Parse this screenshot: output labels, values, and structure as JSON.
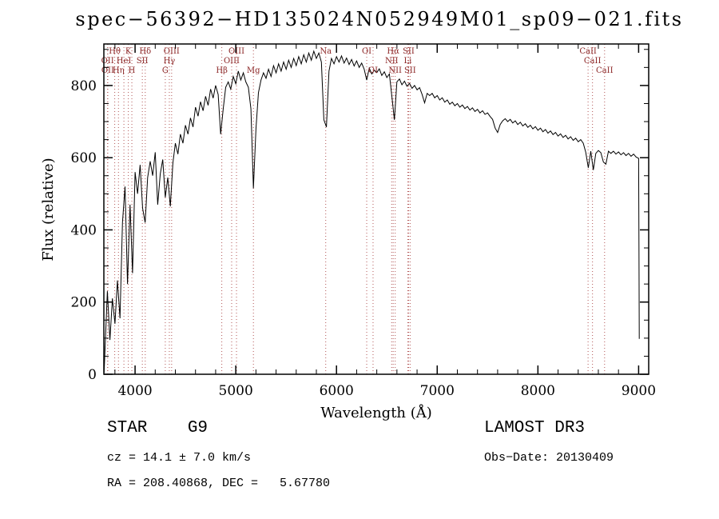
{
  "title": "spec−56392−HD135024N052949M01_sp09−021.fits",
  "axes": {
    "xlabel": "Wavelength (Å)",
    "ylabel": "Flux (relative)"
  },
  "footer": {
    "classification": "STAR    G9",
    "cz": "cz = 14.1 ± 7.0 km/s",
    "coords": "RA = 208.40868, DEC =   5.67780",
    "survey": "LAMOST DR3",
    "obs_date": "Obs−Date: 20130409"
  },
  "chart_data": {
    "type": "line",
    "title": "spec−56392−HD135024N052949M01_sp09−021.fits",
    "xlabel": "Wavelength (Å)",
    "ylabel": "Flux (relative)",
    "xlim": [
      3690,
      9100
    ],
    "ylim": [
      0,
      915
    ],
    "xticks": [
      4000,
      5000,
      6000,
      7000,
      8000,
      9000
    ],
    "yticks": [
      0,
      200,
      400,
      600,
      800
    ],
    "x_minor_step": 200,
    "y_minor_step": 50,
    "grid": false,
    "legend": "none",
    "line_color": "#000000",
    "spectral_line_color": "#b25555",
    "spectral_label_color": "#8b2525",
    "spectral_lines": [
      {
        "wavelength": 3798,
        "label": "Hθ",
        "row": 1
      },
      {
        "wavelength": 3933,
        "label": "K",
        "row": 1
      },
      {
        "wavelength": 4101,
        "label": "Hδ",
        "row": 1
      },
      {
        "wavelength": 4363,
        "label": "OIII",
        "row": 1
      },
      {
        "wavelength": 5007,
        "label": "OIII",
        "row": 1
      },
      {
        "wavelength": 5893,
        "label": "Na",
        "row": 1
      },
      {
        "wavelength": 6300,
        "label": "OI",
        "row": 1
      },
      {
        "wavelength": 6563,
        "label": "Hα",
        "row": 1
      },
      {
        "wavelength": 6716,
        "label": "SII",
        "row": 1
      },
      {
        "wavelength": 8498,
        "label": "CaII",
        "row": 1
      },
      {
        "wavelength": 3727,
        "label": "OII",
        "row": 2
      },
      {
        "wavelength": 3889,
        "label": "HeI",
        "row": 2
      },
      {
        "wavelength": 4072,
        "label": "SII",
        "row": 2
      },
      {
        "wavelength": 4340,
        "label": "Hγ",
        "row": 2
      },
      {
        "wavelength": 4959,
        "label": "OIII",
        "row": 2
      },
      {
        "wavelength": 6548,
        "label": "NII",
        "row": 2
      },
      {
        "wavelength": 6708,
        "label": "Li",
        "row": 2
      },
      {
        "wavelength": 8542,
        "label": "CaII",
        "row": 2
      },
      {
        "wavelength": 3729,
        "label": "OII",
        "row": 3
      },
      {
        "wavelength": 3835,
        "label": "Hη",
        "row": 3
      },
      {
        "wavelength": 3968,
        "label": "H",
        "row": 3
      },
      {
        "wavelength": 4300,
        "label": "G",
        "row": 3
      },
      {
        "wavelength": 4861,
        "label": "Hβ",
        "row": 3
      },
      {
        "wavelength": 5175,
        "label": "Mg",
        "row": 3
      },
      {
        "wavelength": 6363,
        "label": "OI",
        "row": 3
      },
      {
        "wavelength": 6583,
        "label": "NII",
        "row": 3
      },
      {
        "wavelength": 6731,
        "label": "SII",
        "row": 3
      },
      {
        "wavelength": 8662,
        "label": "CaII",
        "row": 3
      }
    ],
    "x_start": 3700,
    "x_step": 25,
    "pre_points": [
      [
        3692,
        4
      ]
    ],
    "post_points": [
      [
        9003,
        360
      ],
      [
        9006,
        98
      ]
    ],
    "y": [
      60,
      230,
      95,
      210,
      140,
      260,
      155,
      420,
      520,
      250,
      470,
      280,
      560,
      500,
      580,
      460,
      420,
      545,
      590,
      550,
      615,
      470,
      555,
      595,
      490,
      545,
      465,
      585,
      640,
      610,
      665,
      640,
      690,
      665,
      710,
      685,
      740,
      715,
      755,
      730,
      770,
      745,
      790,
      765,
      800,
      775,
      665,
      735,
      795,
      810,
      790,
      825,
      805,
      840,
      815,
      835,
      810,
      795,
      735,
      515,
      680,
      780,
      815,
      835,
      820,
      845,
      825,
      855,
      835,
      860,
      840,
      865,
      845,
      870,
      850,
      875,
      855,
      880,
      860,
      885,
      865,
      890,
      870,
      895,
      875,
      890,
      865,
      705,
      685,
      840,
      875,
      860,
      880,
      865,
      882,
      862,
      876,
      858,
      872,
      854,
      868,
      850,
      862,
      845,
      815,
      848,
      832,
      842,
      836,
      846,
      828,
      838,
      822,
      832,
      770,
      705,
      810,
      818,
      802,
      812,
      798,
      806,
      792,
      800,
      788,
      794,
      775,
      752,
      778,
      772,
      778,
      766,
      772,
      760,
      766,
      754,
      760,
      748,
      754,
      744,
      750,
      740,
      746,
      736,
      742,
      732,
      738,
      728,
      734,
      724,
      730,
      720,
      724,
      714,
      706,
      682,
      670,
      692,
      702,
      708,
      700,
      706,
      696,
      702,
      692,
      698,
      688,
      694,
      684,
      690,
      680,
      686,
      676,
      682,
      672,
      678,
      668,
      674,
      664,
      670,
      660,
      666,
      656,
      662,
      652,
      658,
      648,
      654,
      644,
      650,
      640,
      615,
      572,
      618,
      566,
      612,
      620,
      614,
      588,
      582,
      618,
      612,
      618,
      610,
      616,
      608,
      614,
      606,
      612,
      604,
      610,
      602,
      598
    ]
  }
}
